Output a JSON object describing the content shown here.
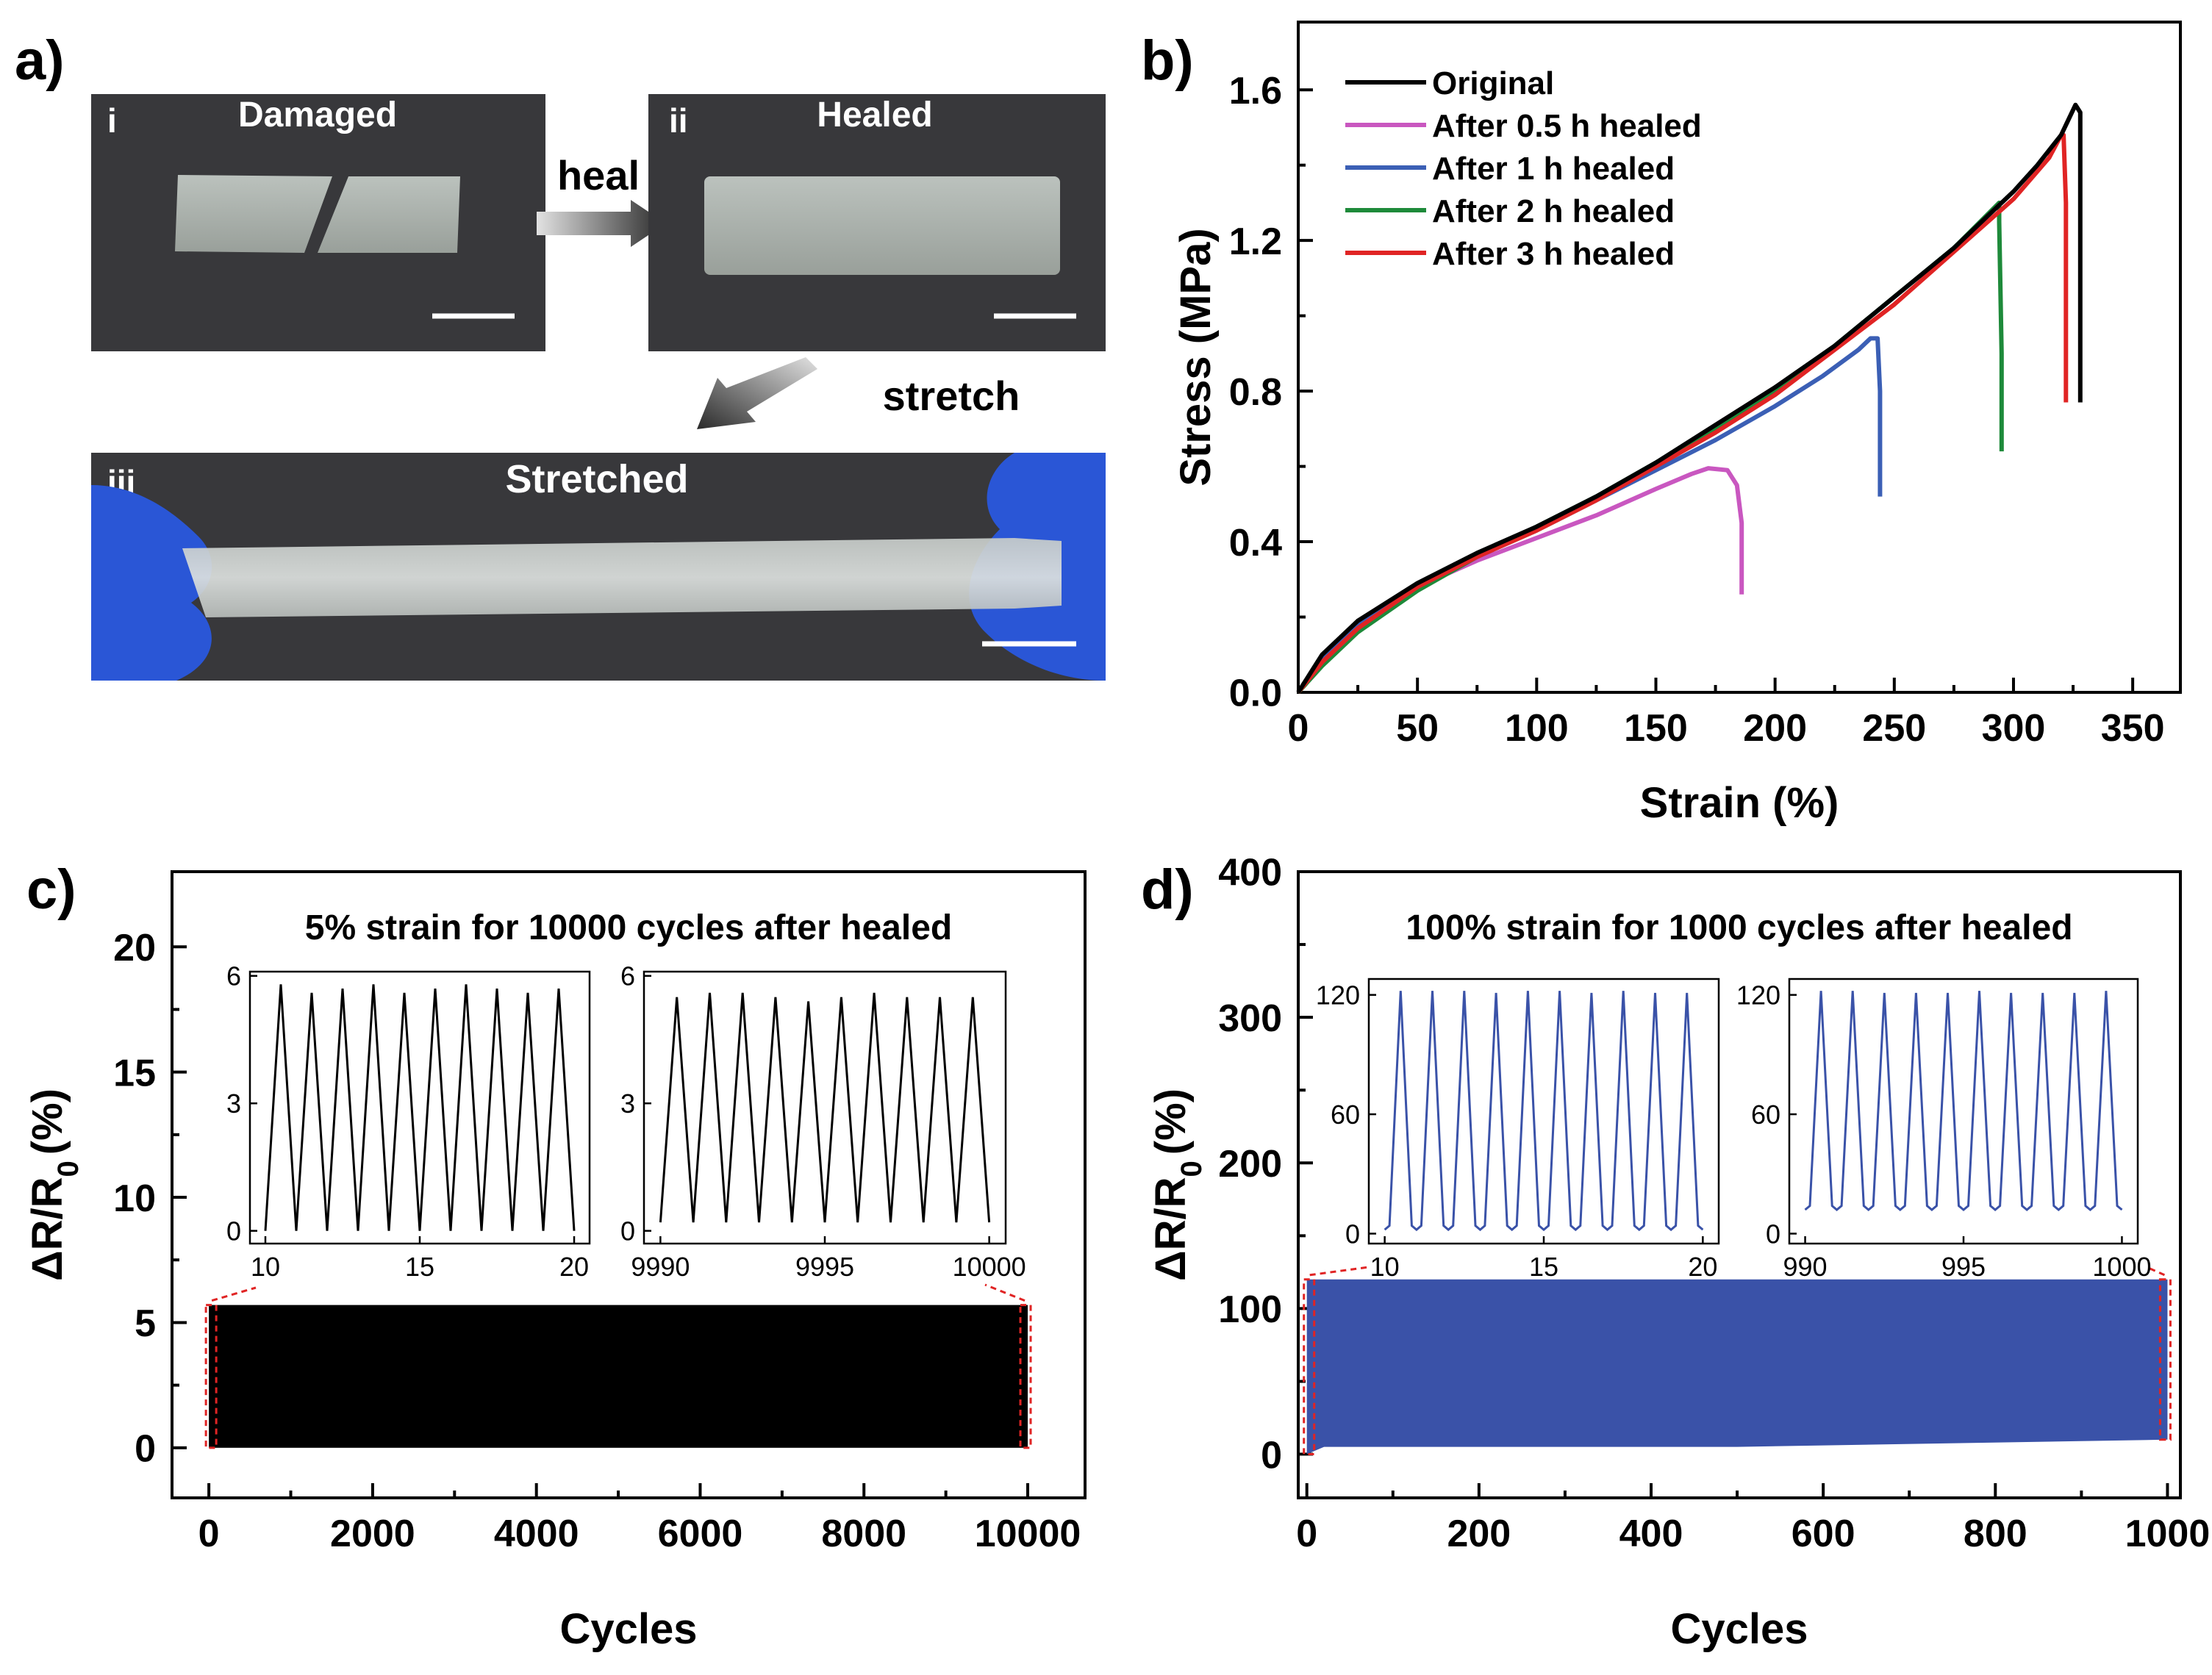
{
  "panel_labels": {
    "a": "a)",
    "b": "b)",
    "c": "c)",
    "d": "d)"
  },
  "photos": {
    "damaged": {
      "roman": "i",
      "title": "Damaged"
    },
    "healed": {
      "roman": "ii",
      "title": "Healed"
    },
    "stretched": {
      "roman": "iii",
      "title": "Stretched"
    },
    "heal_arrow_label": "heal",
    "stretch_arrow_label": "stretch"
  },
  "colors": {
    "original": "#000000",
    "h05": "#c957c0",
    "h1": "#3b5fb5",
    "h2": "#1e8a3a",
    "h3": "#e02424",
    "cycle_c": "#000000",
    "cycle_d": "#3a52a8",
    "marker": "#e02424",
    "photo_bg": "#3a3a3c",
    "glove": "#2a56d6"
  },
  "chart_data": [
    {
      "id": "b",
      "type": "line",
      "xlabel": "Strain (%)",
      "ylabel": "Stress (MPa)",
      "xlim": [
        0,
        370
      ],
      "ylim": [
        0,
        1.78
      ],
      "xticks": [
        0,
        50,
        100,
        150,
        200,
        250,
        300,
        350
      ],
      "yticks": [
        0.0,
        0.4,
        0.8,
        1.2,
        1.6
      ],
      "ytick_labels": [
        "0.0",
        "0.4",
        "0.8",
        "1.2",
        "1.6"
      ],
      "legend_position": "top-left",
      "series": [
        {
          "name": "Original",
          "color_key": "original",
          "x": [
            0,
            10,
            25,
            50,
            75,
            100,
            125,
            150,
            175,
            200,
            225,
            250,
            275,
            300,
            310,
            320,
            326,
            328,
            328
          ],
          "y": [
            0,
            0.1,
            0.19,
            0.29,
            0.37,
            0.44,
            0.52,
            0.61,
            0.71,
            0.81,
            0.92,
            1.05,
            1.18,
            1.33,
            1.4,
            1.48,
            1.56,
            1.54,
            0.77
          ]
        },
        {
          "name": "After 0.5 h healed",
          "color_key": "h05",
          "x": [
            0,
            10,
            25,
            50,
            75,
            100,
            125,
            150,
            165,
            172,
            180,
            184,
            186,
            186
          ],
          "y": [
            0,
            0.09,
            0.18,
            0.28,
            0.35,
            0.41,
            0.47,
            0.54,
            0.58,
            0.595,
            0.59,
            0.55,
            0.45,
            0.26
          ]
        },
        {
          "name": "After 1 h healed",
          "color_key": "h1",
          "x": [
            0,
            10,
            25,
            50,
            75,
            100,
            125,
            150,
            175,
            200,
            220,
            235,
            240,
            243,
            244,
            244
          ],
          "y": [
            0,
            0.09,
            0.18,
            0.28,
            0.36,
            0.43,
            0.51,
            0.59,
            0.67,
            0.76,
            0.84,
            0.91,
            0.94,
            0.94,
            0.8,
            0.52
          ]
        },
        {
          "name": "After 2 h healed",
          "color_key": "h2",
          "x": [
            0,
            10,
            25,
            50,
            75,
            100,
            125,
            150,
            175,
            200,
            225,
            250,
            275,
            294,
            294,
            295,
            295
          ],
          "y": [
            0,
            0.07,
            0.16,
            0.27,
            0.36,
            0.44,
            0.52,
            0.61,
            0.7,
            0.8,
            0.92,
            1.05,
            1.18,
            1.3,
            1.25,
            0.9,
            0.64
          ]
        },
        {
          "name": "After 3 h healed",
          "color_key": "h3",
          "x": [
            0,
            10,
            25,
            50,
            75,
            100,
            125,
            150,
            175,
            200,
            225,
            250,
            275,
            300,
            315,
            320,
            321,
            322,
            322
          ],
          "y": [
            0,
            0.08,
            0.17,
            0.28,
            0.36,
            0.43,
            0.51,
            0.6,
            0.69,
            0.79,
            0.91,
            1.03,
            1.17,
            1.31,
            1.42,
            1.48,
            1.48,
            1.3,
            0.77
          ]
        }
      ]
    },
    {
      "id": "c",
      "type": "line",
      "title": "5% strain for 10000 cycles after healed",
      "xlabel": "Cycles",
      "ylabel": "ΔR/R",
      "ylabel_sub": "0",
      "ylabel_unit": "(%)",
      "xlim": [
        -450,
        10700
      ],
      "ylim": [
        -2,
        23
      ],
      "xticks": [
        0,
        2000,
        4000,
        6000,
        8000,
        10000
      ],
      "yticks": [
        0,
        5,
        10,
        15,
        20
      ],
      "band": {
        "x0": 0,
        "x1": 10000,
        "low": 0,
        "high": 5.7
      },
      "insets": [
        {
          "id": "c1",
          "xlim": [
            9.5,
            20.5
          ],
          "ylim": [
            -0.3,
            6.1
          ],
          "xticks": [
            10,
            15,
            20
          ],
          "yticks": [
            0,
            3,
            6
          ],
          "cycle_start": 10,
          "cycles": 10,
          "peaks": [
            5.8,
            5.6,
            5.7,
            5.8,
            5.6,
            5.7,
            5.8,
            5.7,
            5.6,
            5.7
          ],
          "base": 0.0
        },
        {
          "id": "c2",
          "xlim": [
            9989.5,
            10000.5
          ],
          "ylim": [
            -0.3,
            6.1
          ],
          "xticks": [
            9990,
            9995,
            10000
          ],
          "yticks": [
            0,
            3,
            6
          ],
          "cycle_start": 9990,
          "cycles": 10,
          "peaks": [
            5.5,
            5.6,
            5.6,
            5.5,
            5.4,
            5.5,
            5.6,
            5.5,
            5.5,
            5.5
          ],
          "base": 0.2
        }
      ]
    },
    {
      "id": "d",
      "type": "line",
      "title": "100% strain for 1000 cycles after healed",
      "xlabel": "Cycles",
      "ylabel": "ΔR/R",
      "ylabel_sub": "0",
      "ylabel_unit": "(%)",
      "xlim": [
        -10,
        1015
      ],
      "ylim": [
        -30,
        400
      ],
      "xticks": [
        0,
        200,
        400,
        600,
        800,
        1000
      ],
      "yticks": [
        0,
        100,
        200,
        300,
        400
      ],
      "band": {
        "x0": 0,
        "x1": 1000,
        "low_start": 0,
        "low_mid": 5,
        "low_end": 10,
        "high": 120
      },
      "insets": [
        {
          "id": "d1",
          "xlim": [
            9.5,
            20.5
          ],
          "ylim": [
            -5,
            128
          ],
          "xticks": [
            10,
            15,
            20
          ],
          "yticks": [
            0,
            60,
            120
          ],
          "cycle_start": 10,
          "cycles": 10,
          "peaks": [
            122,
            122,
            122,
            121,
            122,
            122,
            121,
            122,
            121,
            121
          ],
          "base": 2
        },
        {
          "id": "d2",
          "xlim": [
            989.5,
            1000.5
          ],
          "ylim": [
            -5,
            128
          ],
          "xticks": [
            990,
            995,
            1000
          ],
          "yticks": [
            0,
            60,
            120
          ],
          "cycle_start": 990,
          "cycles": 10,
          "peaks": [
            122,
            122,
            121,
            121,
            121,
            122,
            121,
            121,
            121,
            122
          ],
          "base": 12
        }
      ]
    }
  ]
}
